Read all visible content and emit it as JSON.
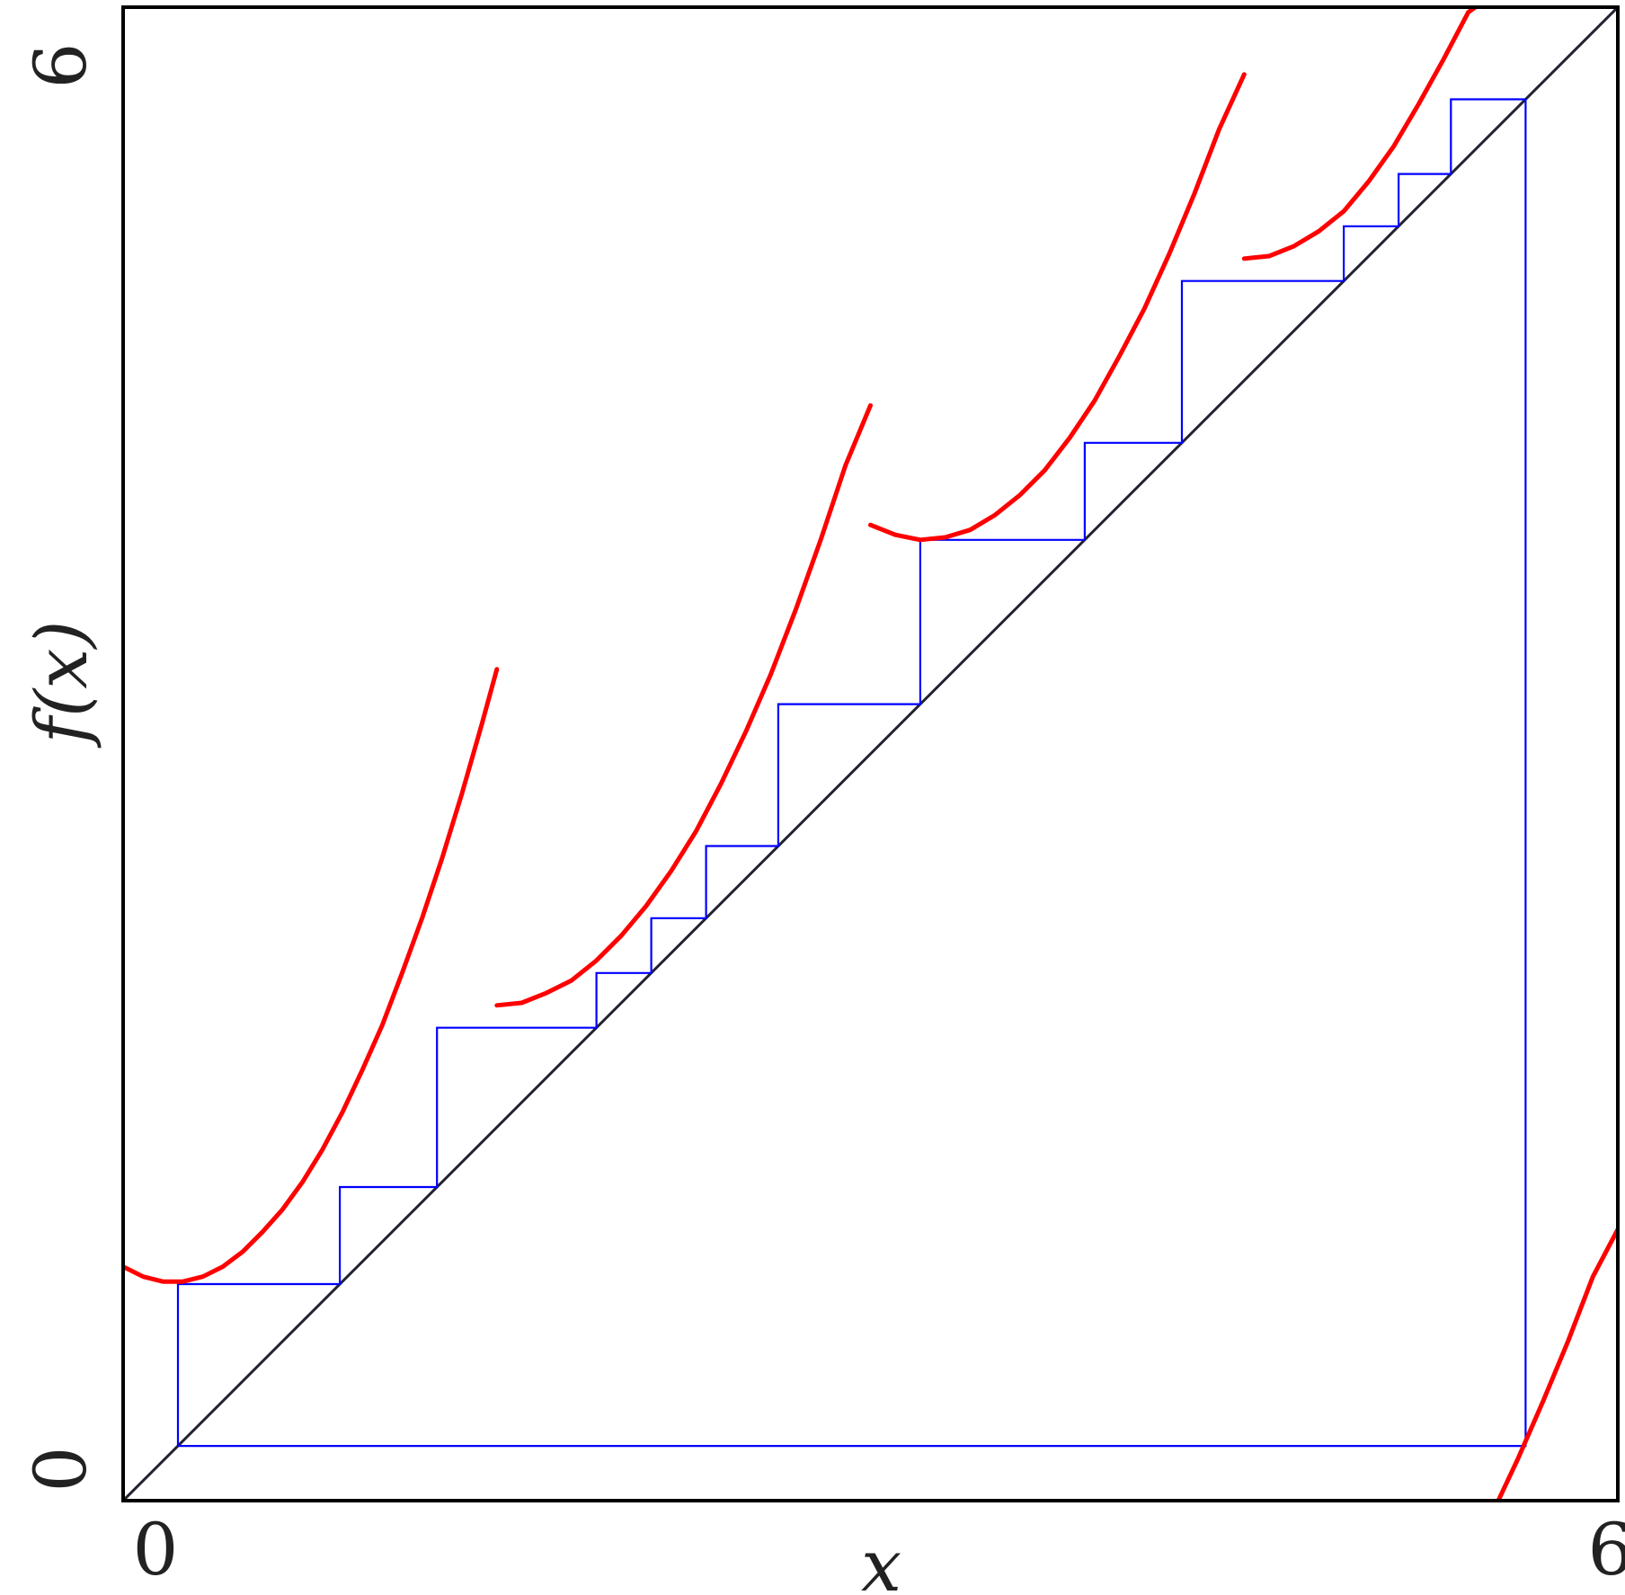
{
  "chart_data": {
    "type": "line",
    "title": "",
    "xlabel": "x",
    "ylabel": "f(x)",
    "xlim": [
      0,
      6
    ],
    "ylim": [
      0,
      6
    ],
    "xticks": [
      "0",
      "6"
    ],
    "yticks": [
      "0",
      "6"
    ],
    "grid": false,
    "legend": "none",
    "colors": {
      "map": "#ff0000",
      "cobweb": "#0000ff",
      "diagonal": "#222233",
      "frame": "#000000"
    },
    "series": [
      {
        "type": "map-branches",
        "branches": [
          {
            "x": [
              0.0,
              0.08,
              0.16,
              0.24,
              0.32,
              0.4,
              0.48,
              0.56,
              0.64,
              0.72,
              0.8,
              0.88,
              0.96,
              1.04,
              1.12,
              1.2,
              1.28,
              1.36,
              1.44,
              1.5
            ],
            "y": [
              0.94,
              0.9,
              0.88,
              0.88,
              0.9,
              0.94,
              1.0,
              1.08,
              1.17,
              1.28,
              1.41,
              1.56,
              1.73,
              1.91,
              2.12,
              2.34,
              2.58,
              2.84,
              3.12,
              3.34
            ]
          },
          {
            "x": [
              1.5,
              1.6,
              1.7,
              1.8,
              1.9,
              2.0,
              2.1,
              2.2,
              2.3,
              2.4,
              2.5,
              2.6,
              2.7,
              2.8,
              2.9,
              3.0
            ],
            "y": [
              1.99,
              2.0,
              2.04,
              2.09,
              2.17,
              2.27,
              2.39,
              2.53,
              2.69,
              2.88,
              3.09,
              3.32,
              3.58,
              3.86,
              4.16,
              4.4
            ]
          },
          {
            "x": [
              3.0,
              3.1,
              3.2,
              3.3,
              3.4,
              3.5,
              3.6,
              3.7,
              3.8,
              3.9,
              4.0,
              4.1,
              4.2,
              4.3,
              4.4,
              4.5
            ],
            "y": [
              3.92,
              3.88,
              3.86,
              3.87,
              3.9,
              3.96,
              4.04,
              4.14,
              4.27,
              4.42,
              4.6,
              4.79,
              5.01,
              5.25,
              5.51,
              5.73
            ]
          },
          {
            "x": [
              4.5,
              4.6,
              4.7,
              4.8,
              4.9,
              5.0,
              5.1,
              5.2,
              5.3,
              5.4,
              5.5
            ],
            "y": [
              4.99,
              5.0,
              5.04,
              5.1,
              5.18,
              5.3,
              5.44,
              5.61,
              5.79,
              5.98,
              6.05
            ]
          },
          {
            "x": [
              5.52,
              5.6,
              5.7,
              5.8,
              5.9,
              6.0
            ],
            "y": [
              0.0,
              0.17,
              0.4,
              0.64,
              0.9,
              1.09
            ]
          }
        ]
      },
      {
        "type": "diagonal",
        "x": [
          0,
          6
        ],
        "y": [
          0,
          6
        ]
      },
      {
        "type": "cobweb",
        "x": [
          0.22,
          0.22,
          0.87,
          0.87,
          1.26,
          1.26,
          1.9,
          1.9,
          2.12,
          2.12,
          2.34,
          2.34,
          2.63,
          2.63,
          3.2,
          3.2,
          3.86,
          3.86,
          4.25,
          4.25,
          4.9,
          4.9,
          5.12,
          5.12,
          5.33,
          5.33,
          5.63,
          5.63,
          0.22
        ],
        "y": [
          0.22,
          0.87,
          0.87,
          1.26,
          1.26,
          1.9,
          1.9,
          2.12,
          2.12,
          2.34,
          2.34,
          2.63,
          2.63,
          3.2,
          3.2,
          3.86,
          3.86,
          4.25,
          4.25,
          4.9,
          4.9,
          5.12,
          5.12,
          5.33,
          5.33,
          5.63,
          5.63,
          0.22,
          0.22
        ]
      }
    ]
  }
}
